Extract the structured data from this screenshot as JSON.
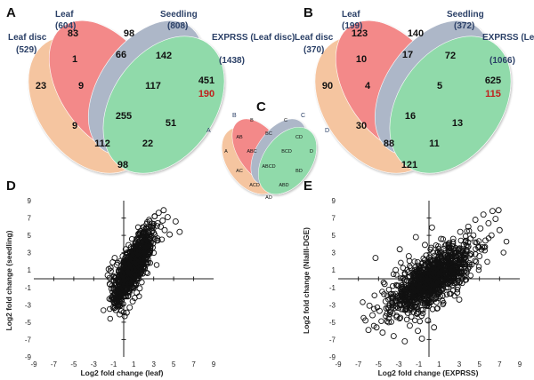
{
  "chart_data": [
    {
      "type": "venn",
      "panel": "A",
      "sets": [
        {
          "name": "Leaf disc",
          "size": "(529)",
          "color": "#f2b07c"
        },
        {
          "name": "Leaf",
          "size": "(604)",
          "color": "#ef5b5b"
        },
        {
          "name": "Seedling",
          "size": "(808)",
          "color": "#8e9cb4"
        },
        {
          "name": "EXPRSS (Leaf disc)",
          "size": "(1438)",
          "color": "#66cc8a"
        }
      ],
      "regions": {
        "A": "23",
        "B": "83",
        "C": "98",
        "D": "451",
        "D_red": "190",
        "AB": "1",
        "BC": "66",
        "CD": "142",
        "ABC": "9",
        "BCD": "117",
        "AC": "9",
        "BD": "51",
        "ABCD": "255",
        "ACD": "112",
        "ABD": "22",
        "AD": "98"
      }
    },
    {
      "type": "venn",
      "panel": "B",
      "sets": [
        {
          "name": "Leaf disc",
          "size": "(370)",
          "color": "#f2b07c"
        },
        {
          "name": "Leaf",
          "size": "(199)",
          "color": "#ef5b5b"
        },
        {
          "name": "Seedling",
          "size": "(372)",
          "color": "#8e9cb4"
        },
        {
          "name": "EXPRSS (Leaf disc)",
          "size": "(1066)",
          "color": "#66cc8a"
        }
      ],
      "regions": {
        "A": "90",
        "B": "123",
        "C": "140",
        "D": "625",
        "D_red": "115",
        "AB": "10",
        "BC": "17",
        "CD": "72",
        "ABC": "4",
        "BCD": "5",
        "AC": "30",
        "BD": "13",
        "ABCD": "16",
        "ACD": "88",
        "ABD": "11",
        "AD": "121"
      }
    },
    {
      "type": "venn-key",
      "panel": "C",
      "letters": [
        "A",
        "B",
        "C",
        "D"
      ],
      "regions": {
        "A": "A",
        "B": "B",
        "C": "C",
        "D": "D",
        "AB": "AB",
        "BC": "BC",
        "CD": "CD",
        "ABC": "ABC",
        "BCD": "BCD",
        "AC": "AC",
        "BD": "BD",
        "ABCD": "ABCD",
        "ACD": "ACD",
        "ABD": "ABD",
        "AD": "AD"
      }
    },
    {
      "type": "scatter",
      "panel": "D",
      "xlabel": "Log2 fold change (leaf)",
      "ylabel": "Log2 fold change (seedling)",
      "xlim": [
        -9,
        9
      ],
      "ylim": [
        -9,
        9
      ],
      "xticks": [
        "-9",
        "-7",
        "-5",
        "-3",
        "-1",
        "1",
        "3",
        "5",
        "7",
        "9"
      ],
      "yticks": [
        "9",
        "7",
        "5",
        "3",
        "1",
        "-1",
        "-3",
        "-5",
        "-7",
        "-9"
      ],
      "points": [
        [
          -1.6,
          0.4
        ],
        [
          -1.4,
          -0.6
        ],
        [
          -1.5,
          1.1
        ],
        [
          -1.2,
          -2.1
        ],
        [
          -1.0,
          -2.6
        ],
        [
          -0.8,
          -3.6
        ],
        [
          -0.6,
          -3.0
        ],
        [
          -0.4,
          -4.1
        ],
        [
          -1.1,
          1.9
        ],
        [
          -0.9,
          2.4
        ],
        [
          -0.7,
          1.6
        ],
        [
          -0.3,
          -1.4
        ],
        [
          -0.2,
          -0.9
        ],
        [
          0.0,
          -0.3
        ],
        [
          0.1,
          0.4
        ],
        [
          0.2,
          0.9
        ],
        [
          0.4,
          1.4
        ],
        [
          0.5,
          2.0
        ],
        [
          0.7,
          2.5
        ],
        [
          0.8,
          3.0
        ],
        [
          1.0,
          3.5
        ],
        [
          1.2,
          4.0
        ],
        [
          1.3,
          4.6
        ],
        [
          1.5,
          5.1
        ],
        [
          1.7,
          5.5
        ],
        [
          2.0,
          5.9
        ],
        [
          2.3,
          6.3
        ],
        [
          2.6,
          6.6
        ],
        [
          3.1,
          7.2
        ],
        [
          3.5,
          7.6
        ],
        [
          3.9,
          6.7
        ],
        [
          3.7,
          6.0
        ],
        [
          4.1,
          5.6
        ],
        [
          4.6,
          5.1
        ],
        [
          5.2,
          6.6
        ],
        [
          5.6,
          5.4
        ],
        [
          3.3,
          4.4
        ],
        [
          2.9,
          3.6
        ],
        [
          2.6,
          2.9
        ],
        [
          2.3,
          1.9
        ],
        [
          2.1,
          1.2
        ],
        [
          1.9,
          0.6
        ],
        [
          1.8,
          -0.4
        ],
        [
          1.6,
          -1.1
        ],
        [
          1.3,
          -1.6
        ],
        [
          1.1,
          -2.2
        ],
        [
          0.9,
          -2.6
        ],
        [
          0.6,
          -3.3
        ],
        [
          0.3,
          -3.9
        ],
        [
          0.1,
          -4.3
        ],
        [
          -0.6,
          -2.2
        ],
        [
          -0.4,
          -1.9
        ],
        [
          -0.2,
          0.2
        ],
        [
          0.3,
          -0.8
        ],
        [
          0.6,
          0.1
        ],
        [
          0.8,
          1.1
        ],
        [
          1.1,
          1.8
        ],
        [
          1.4,
          2.6
        ],
        [
          1.6,
          3.3
        ],
        [
          1.9,
          4.2
        ],
        [
          2.2,
          4.9
        ],
        [
          2.4,
          5.4
        ],
        [
          -1.3,
          0.9
        ],
        [
          -1.0,
          0.2
        ],
        [
          -0.8,
          -0.6
        ],
        [
          -0.5,
          0.8
        ],
        [
          0.4,
          2.9
        ],
        [
          0.2,
          3.4
        ],
        [
          -0.1,
          2.6
        ],
        [
          0.0,
          1.8
        ],
        [
          2.7,
          4.3
        ],
        [
          3.0,
          5.3
        ],
        [
          2.8,
          6.0
        ],
        [
          3.4,
          6.4
        ],
        [
          4.0,
          7.9
        ],
        [
          4.4,
          7.1
        ]
      ]
    },
    {
      "type": "scatter",
      "panel": "E",
      "xlabel": "Log2 fold change (EXPRSS)",
      "ylabel": "Log2 fold change (NlaIII-DGE)",
      "xlim": [
        -9,
        9
      ],
      "ylim": [
        -9,
        9
      ],
      "xticks": [
        "-9",
        "-7",
        "-5",
        "-3",
        "-1",
        "1",
        "3",
        "5",
        "7",
        "9"
      ],
      "yticks": [
        "9",
        "7",
        "5",
        "3",
        "1",
        "-1",
        "-3",
        "-5",
        "-7",
        "-9"
      ],
      "points": [
        [
          -5.6,
          -4.2
        ],
        [
          -5.9,
          -3.1
        ],
        [
          -5.2,
          -5.6
        ],
        [
          -4.9,
          -3.7
        ],
        [
          -4.6,
          -6.2
        ],
        [
          -4.3,
          -2.6
        ],
        [
          -4.0,
          -5.0
        ],
        [
          -3.8,
          -1.8
        ],
        [
          -3.5,
          -6.6
        ],
        [
          -3.2,
          -4.4
        ],
        [
          -3.0,
          -0.8
        ],
        [
          -2.7,
          -3.0
        ],
        [
          -2.4,
          -7.2
        ],
        [
          -2.2,
          -1.5
        ],
        [
          -1.9,
          -5.4
        ],
        [
          -1.6,
          0.4
        ],
        [
          -1.4,
          -2.4
        ],
        [
          -1.1,
          -6.0
        ],
        [
          -0.9,
          1.2
        ],
        [
          -0.6,
          -3.6
        ],
        [
          -0.4,
          -0.2
        ],
        [
          -0.1,
          -4.8
        ],
        [
          0.1,
          2.1
        ],
        [
          0.4,
          -1.2
        ],
        [
          0.6,
          0.8
        ],
        [
          0.9,
          3.0
        ],
        [
          1.1,
          -2.0
        ],
        [
          1.4,
          1.6
        ],
        [
          1.6,
          3.8
        ],
        [
          1.9,
          0.2
        ],
        [
          2.1,
          2.6
        ],
        [
          2.4,
          4.6
        ],
        [
          2.6,
          1.0
        ],
        [
          2.9,
          3.4
        ],
        [
          3.1,
          5.4
        ],
        [
          3.4,
          2.0
        ],
        [
          3.6,
          4.2
        ],
        [
          3.9,
          6.0
        ],
        [
          4.1,
          2.9
        ],
        [
          4.4,
          5.0
        ],
        [
          4.6,
          6.8
        ],
        [
          4.9,
          3.6
        ],
        [
          5.1,
          5.8
        ],
        [
          5.4,
          7.4
        ],
        [
          5.6,
          4.4
        ],
        [
          5.9,
          6.4
        ],
        [
          6.2,
          5.0
        ],
        [
          6.6,
          6.9
        ],
        [
          7.0,
          5.6
        ],
        [
          6.3,
          7.8
        ],
        [
          6.9,
          7.9
        ],
        [
          -5.3,
          2.4
        ],
        [
          -1.3,
          4.8
        ],
        [
          0.3,
          5.9
        ],
        [
          -0.4,
          3.9
        ],
        [
          -2.0,
          2.6
        ],
        [
          -3.3,
          1.0
        ],
        [
          -4.4,
          -0.6
        ],
        [
          -2.6,
          -2.0
        ],
        [
          -0.9,
          -1.2
        ],
        [
          0.8,
          -0.4
        ],
        [
          2.2,
          -0.2
        ],
        [
          3.3,
          0.6
        ],
        [
          4.0,
          1.4
        ],
        [
          -1.8,
          -3.4
        ],
        [
          -3.6,
          -4.0
        ],
        [
          0.0,
          -2.8
        ],
        [
          1.7,
          -1.0
        ],
        [
          2.8,
          -1.6
        ],
        [
          1.2,
          4.6
        ],
        [
          -6.3,
          -4.8
        ],
        [
          -6.0,
          -5.9
        ],
        [
          5.0,
          2.6
        ],
        [
          3.0,
          -2.4
        ],
        [
          -2.9,
          3.4
        ],
        [
          0.5,
          -5.6
        ],
        [
          -0.7,
          -6.9
        ]
      ]
    }
  ]
}
